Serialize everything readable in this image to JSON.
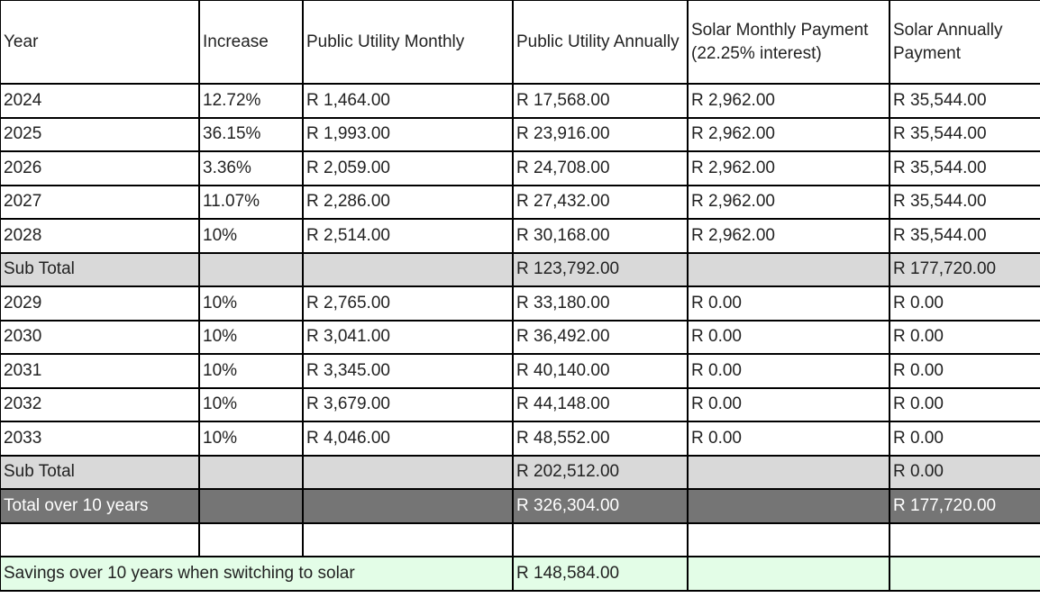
{
  "headers": [
    "Year",
    "Increase",
    "Public Utility Monthly",
    "Public Utility Annually",
    "Solar Monthly Payment (22.25% interest)",
    "Solar Annually Payment"
  ],
  "rows": [
    {
      "type": "data",
      "cells": [
        "2024",
        "12.72%",
        "R 1,464.00",
        "R 17,568.00",
        "R 2,962.00",
        "R 35,544.00"
      ]
    },
    {
      "type": "data",
      "cells": [
        "2025",
        "36.15%",
        "R 1,993.00",
        "R 23,916.00",
        "R 2,962.00",
        "R 35,544.00"
      ]
    },
    {
      "type": "data",
      "cells": [
        "2026",
        "3.36%",
        "R 2,059.00",
        "R 24,708.00",
        "R 2,962.00",
        "R 35,544.00"
      ]
    },
    {
      "type": "data",
      "cells": [
        "2027",
        "11.07%",
        "R 2,286.00",
        "R 27,432.00",
        "R 2,962.00",
        "R 35,544.00"
      ]
    },
    {
      "type": "data",
      "cells": [
        "2028",
        "10%",
        "R 2,514.00",
        "R 30,168.00",
        "R 2,962.00",
        "R 35,544.00"
      ]
    },
    {
      "type": "sub",
      "cells": [
        "Sub Total",
        "",
        "",
        "R 123,792.00",
        "",
        "R 177,720.00"
      ]
    },
    {
      "type": "data",
      "cells": [
        "2029",
        "10%",
        "R 2,765.00",
        "R 33,180.00",
        "R 0.00",
        "R 0.00"
      ]
    },
    {
      "type": "data",
      "cells": [
        "2030",
        "10%",
        "R 3,041.00",
        "R 36,492.00",
        "R 0.00",
        "R 0.00"
      ]
    },
    {
      "type": "data",
      "cells": [
        "2031",
        "10%",
        "R 3,345.00",
        "R 40,140.00",
        "R 0.00",
        "R 0.00"
      ]
    },
    {
      "type": "data",
      "cells": [
        "2032",
        "10%",
        "R 3,679.00",
        "R 44,148.00",
        "R 0.00",
        "R 0.00"
      ]
    },
    {
      "type": "data",
      "cells": [
        "2033",
        "10%",
        "R 4,046.00",
        "R 48,552.00",
        "R 0.00",
        "R 0.00"
      ]
    },
    {
      "type": "sub",
      "cells": [
        "Sub Total",
        "",
        "",
        "R 202,512.00",
        "",
        "R 0.00"
      ]
    },
    {
      "type": "total",
      "cells": [
        "Total over 10 years",
        "",
        "",
        "R 326,304.00",
        "",
        "R 177,720.00"
      ]
    },
    {
      "type": "data",
      "cells": [
        "",
        "",
        "",
        "",
        "",
        ""
      ]
    }
  ],
  "savings": {
    "label": "Savings over 10 years when switching to solar",
    "value": "R 148,584.00"
  },
  "colors": {
    "subtotal": "#d9d9d9",
    "total": "#757575",
    "savings": "#e3fde7"
  }
}
